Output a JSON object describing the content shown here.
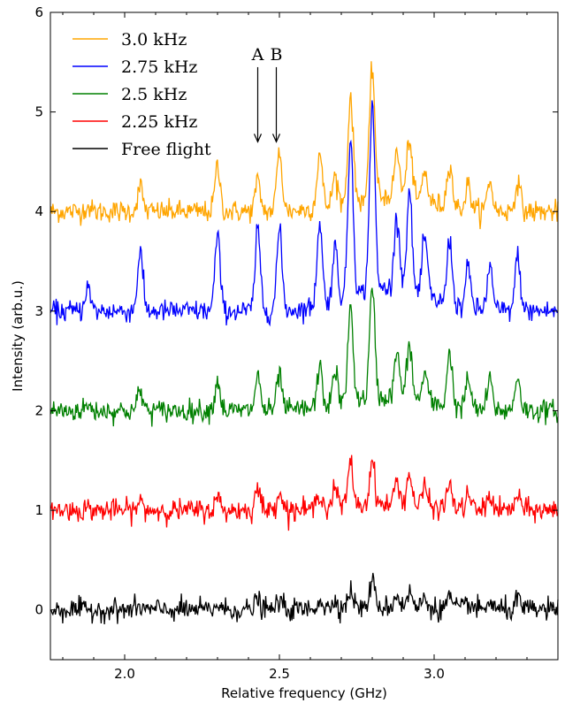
{
  "chart_data": {
    "type": "line",
    "xlabel": "Relative frequency (GHz)",
    "ylabel": "Intensity (arb.u.)",
    "xlim": [
      1.76,
      3.4
    ],
    "ylim": [
      -0.5,
      6
    ],
    "xticks": [
      2.0,
      2.5,
      3.0
    ],
    "xtick_labels": [
      "2.0",
      "2.5",
      "3.0"
    ],
    "yticks": [
      0,
      1,
      2,
      3,
      4,
      5,
      6
    ],
    "ytick_labels": [
      "0",
      "1",
      "2",
      "3",
      "4",
      "5",
      "6"
    ],
    "grid": false,
    "legend_position": "top-left",
    "peak_positions": [
      1.88,
      2.05,
      2.3,
      2.43,
      2.5,
      2.63,
      2.68,
      2.73,
      2.8,
      2.88,
      2.92,
      2.97,
      3.05,
      3.11,
      3.18,
      3.27
    ],
    "series": [
      {
        "name": "3.0 kHz",
        "color": "#ffa500",
        "baseline": 4.0,
        "peaks": [
          0.05,
          0.25,
          0.45,
          0.3,
          0.6,
          0.55,
          0.3,
          1.05,
          1.3,
          0.45,
          0.6,
          0.3,
          0.45,
          0.25,
          0.3,
          0.3
        ]
      },
      {
        "name": "2.75 kHz",
        "color": "#0000ff",
        "baseline": 3.0,
        "peaks": [
          0.25,
          0.6,
          0.75,
          0.8,
          0.8,
          0.85,
          0.55,
          1.6,
          1.9,
          0.75,
          1.0,
          0.6,
          0.65,
          0.4,
          0.45,
          0.55
        ]
      },
      {
        "name": "2.5 kHz",
        "color": "#008000",
        "baseline": 2.0,
        "peaks": [
          0.05,
          0.2,
          0.3,
          0.35,
          0.35,
          0.4,
          0.35,
          0.95,
          1.1,
          0.45,
          0.55,
          0.3,
          0.55,
          0.3,
          0.3,
          0.35
        ]
      },
      {
        "name": "2.25 kHz",
        "color": "#ff0000",
        "baseline": 1.0,
        "peaks": [
          0.02,
          0.08,
          0.12,
          0.22,
          0.2,
          0.18,
          0.2,
          0.45,
          0.45,
          0.25,
          0.32,
          0.2,
          0.25,
          0.15,
          0.15,
          0.15
        ]
      },
      {
        "name": "Free flight",
        "color": "#000000",
        "baseline": 0.0,
        "peaks": [
          0.0,
          0.03,
          0.05,
          0.1,
          0.1,
          0.1,
          0.1,
          0.18,
          0.25,
          0.12,
          0.15,
          0.1,
          0.12,
          0.08,
          0.08,
          0.1
        ]
      }
    ],
    "annotations": [
      {
        "text": "A",
        "x": 2.43,
        "arrow_from": 5.45,
        "arrow_to": 4.7
      },
      {
        "text": "B",
        "x": 2.49,
        "arrow_from": 5.45,
        "arrow_to": 4.7
      }
    ]
  }
}
